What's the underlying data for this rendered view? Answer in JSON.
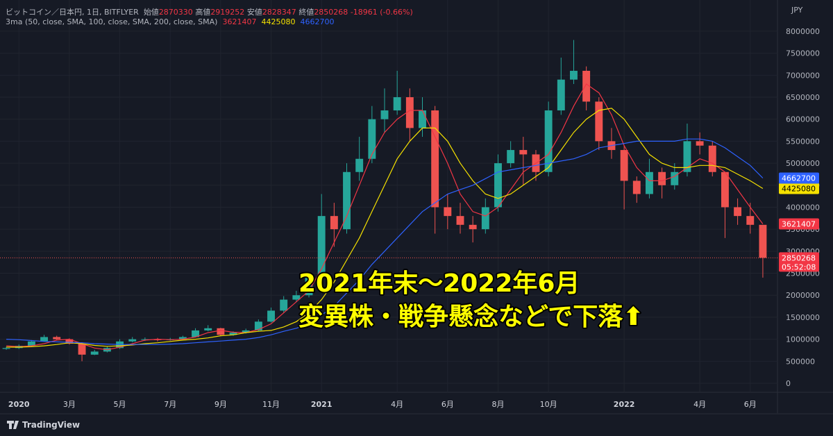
{
  "chart_data": {
    "type": "candlestick",
    "title": "ビットコイン／日本円, 1日, BITFLYER",
    "ohlc_legend": [
      {
        "label": "始値",
        "value": 2870330
      },
      {
        "label": "高値",
        "value": 2919252
      },
      {
        "label": "安値",
        "value": 2828347
      },
      {
        "label": "終値",
        "value": 2850268
      }
    ],
    "change": "-18961 (-0.66%)",
    "indicator": "3ma (50, close, SMA, 100, close, SMA, 200, close, SMA)",
    "currency": "JPY",
    "countdown": "05:52:08",
    "brand": "TradingView",
    "annotation": [
      "2021年末～2022年6月",
      "変異株・戦争懸念などで下落⬆"
    ],
    "up_color": "#26a69a",
    "down_color": "#ef5350",
    "x": [
      -0.5,
      0,
      0.5,
      1,
      1.5,
      2,
      2.5,
      3,
      3.5,
      4,
      4.5,
      5,
      5.5,
      6,
      6.5,
      7,
      7.5,
      8,
      8.5,
      9,
      9.5,
      10,
      10.5,
      11,
      11.5,
      12,
      12.5,
      13,
      13.5,
      14,
      14.5,
      15,
      15.5,
      16,
      16.5,
      17,
      17.5,
      18,
      18.5,
      19,
      19.5,
      20,
      20.5,
      21,
      21.5,
      22,
      22.5,
      23,
      23.5,
      24,
      24.5,
      25,
      25.5,
      26,
      26.5,
      27,
      27.5,
      28,
      28.5,
      29,
      29.5
    ],
    "open": [
      780000,
      800000,
      850000,
      950000,
      1050000,
      1000000,
      900000,
      650000,
      720000,
      800000,
      950000,
      1000000,
      1000000,
      980000,
      1000000,
      1050000,
      1200000,
      1250000,
      1100000,
      1150000,
      1200000,
      1400000,
      1650000,
      1900000,
      2000000,
      2400000,
      3800000,
      3500000,
      4800000,
      5100000,
      6000000,
      6200000,
      6500000,
      5800000,
      6200000,
      4000000,
      3800000,
      3600000,
      3500000,
      4000000,
      5000000,
      5300000,
      5200000,
      4800000,
      6200000,
      6900000,
      7100000,
      6400000,
      5500000,
      5300000,
      4600000,
      4300000,
      4800000,
      4500000,
      4800000,
      5500000,
      5400000,
      4800000,
      4000000,
      3800000,
      3600000
    ],
    "high": [
      830000,
      880000,
      980000,
      1100000,
      1080000,
      1020000,
      930000,
      760000,
      830000,
      1000000,
      1050000,
      1040000,
      1030000,
      1030000,
      1080000,
      1250000,
      1320000,
      1260000,
      1180000,
      1240000,
      1450000,
      1720000,
      1980000,
      2100000,
      2500000,
      4300000,
      4100000,
      5000000,
      5600000,
      6300000,
      6700000,
      7100000,
      6700000,
      6500000,
      6300000,
      4300000,
      4100000,
      3800000,
      4200000,
      5200000,
      5500000,
      5600000,
      5300000,
      6400000,
      7400000,
      7800000,
      7200000,
      6500000,
      5800000,
      5400000,
      4700000,
      5100000,
      4900000,
      5000000,
      5900000,
      5700000,
      5500000,
      4800000,
      4200000,
      4100000,
      3600000
    ],
    "low": [
      760000,
      780000,
      830000,
      940000,
      970000,
      880000,
      500000,
      640000,
      700000,
      780000,
      930000,
      960000,
      950000,
      970000,
      990000,
      1040000,
      1180000,
      1080000,
      1080000,
      1130000,
      1190000,
      1380000,
      1600000,
      1850000,
      1950000,
      2350000,
      3100000,
      3400000,
      4600000,
      5000000,
      5700000,
      6100000,
      5500000,
      5600000,
      3400000,
      3500000,
      3400000,
      3200000,
      3400000,
      3900000,
      4900000,
      4500000,
      4600000,
      4700000,
      6100000,
      6800000,
      6200000,
      5300000,
      5100000,
      3950000,
      4100000,
      4200000,
      4200000,
      4400000,
      4700000,
      5200000,
      4700000,
      3300000,
      3600000,
      3400000,
      2400000
    ],
    "close": [
      800000,
      850000,
      950000,
      1050000,
      1000000,
      900000,
      650000,
      720000,
      800000,
      950000,
      1000000,
      1000000,
      980000,
      1000000,
      1050000,
      1200000,
      1250000,
      1100000,
      1150000,
      1200000,
      1400000,
      1650000,
      1900000,
      2000000,
      2400000,
      3800000,
      3500000,
      4800000,
      5100000,
      6000000,
      6200000,
      6500000,
      5800000,
      6200000,
      4000000,
      3800000,
      3600000,
      3500000,
      4000000,
      5000000,
      5300000,
      5200000,
      4800000,
      6200000,
      6900000,
      7100000,
      6400000,
      5500000,
      5300000,
      4600000,
      4300000,
      4800000,
      4500000,
      4800000,
      5500000,
      5400000,
      4800000,
      4000000,
      3800000,
      3600000,
      2850268
    ],
    "series": [
      {
        "color": "#f23645",
        "values": [
          850000,
          830000,
          850000,
          900000,
          980000,
          1000000,
          900000,
          800000,
          760000,
          820000,
          900000,
          980000,
          1000000,
          990000,
          1000000,
          1050000,
          1150000,
          1200000,
          1160000,
          1150000,
          1220000,
          1350000,
          1600000,
          1850000,
          2100000,
          2600000,
          3200000,
          3800000,
          4500000,
          5200000,
          5700000,
          6000000,
          6200000,
          6200000,
          5600000,
          5000000,
          4300000,
          3900000,
          3800000,
          4000000,
          4400000,
          4800000,
          5000000,
          5200000,
          5700000,
          6300000,
          6800000,
          6600000,
          6100000,
          5400000,
          4900000,
          4600000,
          4600000,
          4700000,
          4900000,
          5100000,
          5000000,
          4800000,
          4400000,
          4000000,
          3621407
        ]
      },
      {
        "color": "#f5e100",
        "values": [
          820000,
          820000,
          830000,
          850000,
          880000,
          920000,
          900000,
          860000,
          840000,
          850000,
          870000,
          900000,
          920000,
          950000,
          980000,
          1000000,
          1030000,
          1080000,
          1100000,
          1150000,
          1180000,
          1200000,
          1280000,
          1400000,
          1600000,
          1900000,
          2300000,
          2800000,
          3300000,
          3900000,
          4500000,
          5100000,
          5500000,
          5800000,
          5800000,
          5500000,
          5000000,
          4600000,
          4300000,
          4200000,
          4300000,
          4500000,
          4700000,
          4900000,
          5300000,
          5700000,
          6000000,
          6200000,
          6250000,
          6000000,
          5600000,
          5200000,
          5000000,
          4900000,
          4900000,
          4950000,
          4950000,
          4900000,
          4750000,
          4600000,
          4425080
        ]
      },
      {
        "color": "#2e62ff",
        "values": [
          1000000,
          990000,
          970000,
          950000,
          940000,
          930000,
          920000,
          900000,
          890000,
          880000,
          880000,
          880000,
          880000,
          890000,
          900000,
          920000,
          940000,
          960000,
          980000,
          1000000,
          1040000,
          1100000,
          1180000,
          1250000,
          1350000,
          1550000,
          1750000,
          2050000,
          2350000,
          2700000,
          3000000,
          3300000,
          3600000,
          3900000,
          4100000,
          4300000,
          4400000,
          4500000,
          4650000,
          4800000,
          4850000,
          4900000,
          4950000,
          5000000,
          5050000,
          5100000,
          5200000,
          5350000,
          5400000,
          5450000,
          5500000,
          5500000,
          5500000,
          5500000,
          5550000,
          5550000,
          5500000,
          5350000,
          5150000,
          4950000,
          4662700
        ]
      }
    ],
    "xlim": [
      -0.75,
      30.08
    ],
    "ylim": [
      -205000,
      8630000
    ],
    "yticks": [
      0,
      500000,
      1000000,
      1500000,
      2000000,
      2500000,
      3000000,
      3500000,
      4000000,
      4500000,
      5000000,
      5500000,
      6000000,
      6500000,
      7000000,
      7500000,
      8000000
    ],
    "xticks": [
      {
        "value": 0,
        "label": "2020"
      },
      {
        "value": 2,
        "label": "3月"
      },
      {
        "value": 4,
        "label": "5月"
      },
      {
        "value": 6,
        "label": "7月"
      },
      {
        "value": 8,
        "label": "9月"
      },
      {
        "value": 10,
        "label": "11月"
      },
      {
        "value": 12,
        "label": "2021"
      },
      {
        "value": 15,
        "label": "4月"
      },
      {
        "value": 17,
        "label": "6月"
      },
      {
        "value": 19,
        "label": "8月"
      },
      {
        "value": 21,
        "label": "10月"
      },
      {
        "value": 24,
        "label": "2022"
      },
      {
        "value": 27,
        "label": "4月"
      },
      {
        "value": 29,
        "label": "6月"
      }
    ],
    "grid": true
  }
}
